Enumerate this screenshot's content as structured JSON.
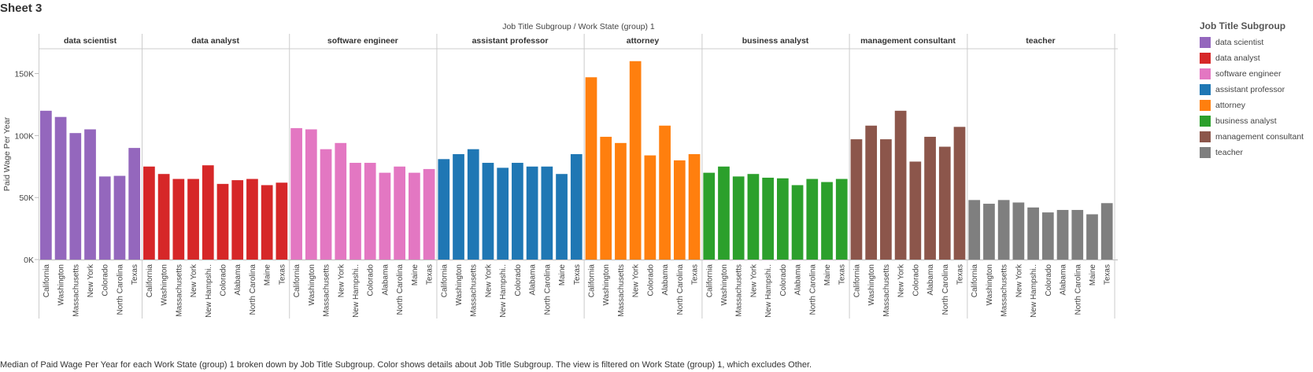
{
  "sheet_title": "Sheet 3",
  "caption": "Median of Paid Wage Per Year for each Work State (group) 1 broken down by Job Title Subgroup.  Color shows details about Job Title Subgroup. The view is filtered on Work State (group) 1, which excludes Other.",
  "legend": {
    "title": "Job Title Subgroup",
    "items": [
      {
        "label": "data scientist",
        "color": "#9467bd"
      },
      {
        "label": "data analyst",
        "color": "#d62728"
      },
      {
        "label": "software engineer",
        "color": "#e377c2"
      },
      {
        "label": "assistant professor",
        "color": "#1f77b4"
      },
      {
        "label": "attorney",
        "color": "#ff7f0e"
      },
      {
        "label": "business analyst",
        "color": "#2ca02c"
      },
      {
        "label": "management consultant",
        "color": "#8c564b"
      },
      {
        "label": "teacher",
        "color": "#7f7f7f"
      }
    ]
  },
  "chart_data": {
    "type": "bar",
    "title": "Job Title Subgroup  /  Work State (group) 1",
    "ylabel": "Paid Wage Per Year",
    "ylim": [
      0,
      170000
    ],
    "yticks": [
      {
        "value": 0,
        "label": "0K"
      },
      {
        "value": 50000,
        "label": "50K"
      },
      {
        "value": 100000,
        "label": "100K"
      },
      {
        "value": 150000,
        "label": "150K"
      }
    ],
    "grid": false,
    "legend_position": "right",
    "panels": [
      {
        "name": "data scientist",
        "color": "#9467bd",
        "categories": [
          "California",
          "Washington",
          "Massachusetts",
          "New York",
          "Colorado",
          "North Carolina",
          "Texas"
        ],
        "values": [
          120000,
          115000,
          102000,
          105000,
          67000,
          67500,
          90000
        ]
      },
      {
        "name": "data analyst",
        "color": "#d62728",
        "categories": [
          "California",
          "Washington",
          "Massachusetts",
          "New York",
          "New Hampshi..",
          "Colorado",
          "Alabama",
          "North Carolina",
          "Maine",
          "Texas"
        ],
        "values": [
          75000,
          69000,
          65000,
          65000,
          76000,
          61000,
          64000,
          65000,
          60000,
          62000
        ]
      },
      {
        "name": "software engineer",
        "color": "#e377c2",
        "categories": [
          "California",
          "Washington",
          "Massachusetts",
          "New York",
          "New Hampshi..",
          "Colorado",
          "Alabama",
          "North Carolina",
          "Maine",
          "Texas"
        ],
        "values": [
          106000,
          105000,
          89000,
          94000,
          78000,
          78000,
          70000,
          75000,
          70000,
          73000
        ]
      },
      {
        "name": "assistant professor",
        "color": "#1f77b4",
        "categories": [
          "California",
          "Washington",
          "Massachusetts",
          "New York",
          "New Hampshi..",
          "Colorado",
          "Alabama",
          "North Carolina",
          "Maine",
          "Texas"
        ],
        "values": [
          81000,
          85000,
          89000,
          78000,
          74000,
          78000,
          75000,
          75000,
          69000,
          85000
        ]
      },
      {
        "name": "attorney",
        "color": "#ff7f0e",
        "categories": [
          "California",
          "Washington",
          "Massachusetts",
          "New York",
          "Colorado",
          "Alabama",
          "North Carolina",
          "Texas"
        ],
        "values": [
          147000,
          99000,
          94000,
          160000,
          84000,
          108000,
          80000,
          85000
        ]
      },
      {
        "name": "business analyst",
        "color": "#2ca02c",
        "categories": [
          "California",
          "Washington",
          "Massachusetts",
          "New York",
          "New Hampshi..",
          "Colorado",
          "Alabama",
          "North Carolina",
          "Maine",
          "Texas"
        ],
        "values": [
          70000,
          75000,
          67000,
          69000,
          66000,
          65500,
          60000,
          65000,
          62500,
          65000
        ]
      },
      {
        "name": "management consultant",
        "color": "#8c564b",
        "categories": [
          "California",
          "Washington",
          "Massachusetts",
          "New York",
          "Colorado",
          "Alabama",
          "North Carolina",
          "Texas"
        ],
        "values": [
          97000,
          108000,
          97000,
          120000,
          79000,
          99000,
          91000,
          107000
        ]
      },
      {
        "name": "teacher",
        "color": "#7f7f7f",
        "categories": [
          "California",
          "Washington",
          "Massachusetts",
          "New York",
          "New Hampshi..",
          "Colorado",
          "Alabama",
          "North Carolina",
          "Maine",
          "Texas"
        ],
        "values": [
          48000,
          45000,
          48000,
          46000,
          42000,
          38000,
          40000,
          40000,
          36500,
          45500
        ]
      }
    ]
  }
}
